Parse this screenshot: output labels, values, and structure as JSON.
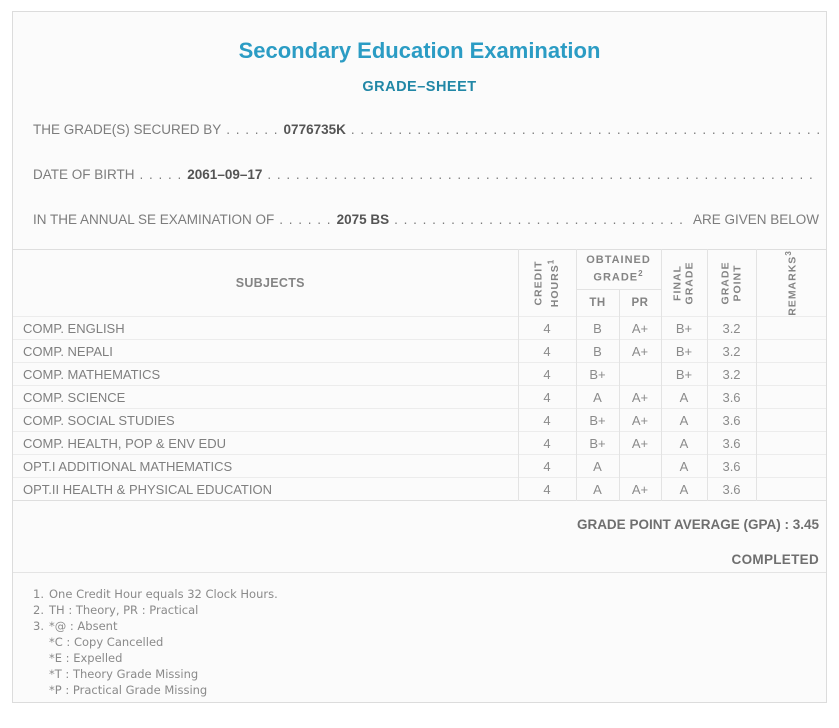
{
  "page": {
    "title": "Secondary Education Examination",
    "subtitle": "GRADE–SHEET"
  },
  "colors": {
    "title_accent": "#2b9cc4",
    "subtitle_accent": "#2187a6",
    "text_grey": "#7c7c7c",
    "card_background": "#fbfbfb",
    "card_border": "#dcdcdc"
  },
  "info": {
    "secured_by": {
      "label": "THE GRADE(S) SECURED BY",
      "dots": ". . . . . .",
      "value": "0776735K"
    },
    "date_of_birth": {
      "label": "DATE OF BIRTH",
      "dots": ". . . . .",
      "value": "2061–09–17"
    },
    "examination": {
      "label": "IN THE ANNUAL SE EXAMINATION OF",
      "dots": ". . . . . .",
      "value": "2075 BS",
      "suffix": "ARE GIVEN BELOW"
    },
    "leader": ". . . . . . . . . . . . . . . . . . . . . . . . . . . . . . . . . . . . . . . . . . . . . . . . . . . . . . . . . . . . . . . . . . . . . . . . . . . . . . . . . . . . . . . . . . . . . . . . . . . . . . . . . . . . . . . . . . . . . . . . . . . ."
  },
  "table": {
    "headers": {
      "subjects": "SUBJECTS",
      "credit_line1": "CREDIT",
      "credit_line2": "HOURS",
      "credit_sup": "1",
      "obtained_line1": "OBTAINED",
      "obtained_line2": "GRADE",
      "obtained_sup": "2",
      "th": "TH",
      "pr": "PR",
      "final_line1": "FINAL",
      "final_line2": "GRADE",
      "point_line1": "GRADE",
      "point_line2": "POINT",
      "remarks": "REMARKS",
      "remarks_sup": "3"
    },
    "rows": [
      {
        "subject": "COMP. ENGLISH",
        "credit": "4",
        "th": "B",
        "pr": "A+",
        "final": "B+",
        "point": "3.2",
        "remarks": ""
      },
      {
        "subject": "COMP. NEPALI",
        "credit": "4",
        "th": "B",
        "pr": "A+",
        "final": "B+",
        "point": "3.2",
        "remarks": ""
      },
      {
        "subject": "COMP. MATHEMATICS",
        "credit": "4",
        "th": "B+",
        "pr": "",
        "final": "B+",
        "point": "3.2",
        "remarks": ""
      },
      {
        "subject": "COMP. SCIENCE",
        "credit": "4",
        "th": "A",
        "pr": "A+",
        "final": "A",
        "point": "3.6",
        "remarks": ""
      },
      {
        "subject": "COMP. SOCIAL STUDIES",
        "credit": "4",
        "th": "B+",
        "pr": "A+",
        "final": "A",
        "point": "3.6",
        "remarks": ""
      },
      {
        "subject": "COMP. HEALTH, POP & ENV EDU",
        "credit": "4",
        "th": "B+",
        "pr": "A+",
        "final": "A",
        "point": "3.6",
        "remarks": ""
      },
      {
        "subject": "OPT.I ADDITIONAL MATHEMATICS",
        "credit": "4",
        "th": "A",
        "pr": "",
        "final": "A",
        "point": "3.6",
        "remarks": ""
      },
      {
        "subject": "OPT.II HEALTH & PHYSICAL EDUCATION",
        "credit": "4",
        "th": "A",
        "pr": "A+",
        "final": "A",
        "point": "3.6",
        "remarks": ""
      }
    ]
  },
  "summary": {
    "gpa_label": "GRADE POINT AVERAGE (GPA) :",
    "gpa_value": "3.45",
    "status": "COMPLETED"
  },
  "footnotes": [
    {
      "num": "1.",
      "text": "One Credit Hour equals 32 Clock Hours."
    },
    {
      "num": "2.",
      "text": "TH : Theory, PR : Practical"
    },
    {
      "num": "3.",
      "text": "*@ : Absent"
    },
    {
      "num": "",
      "text": "*C : Copy Cancelled"
    },
    {
      "num": "",
      "text": "*E : Expelled"
    },
    {
      "num": "",
      "text": "*T : Theory Grade Missing"
    },
    {
      "num": "",
      "text": "*P : Practical Grade Missing"
    }
  ]
}
